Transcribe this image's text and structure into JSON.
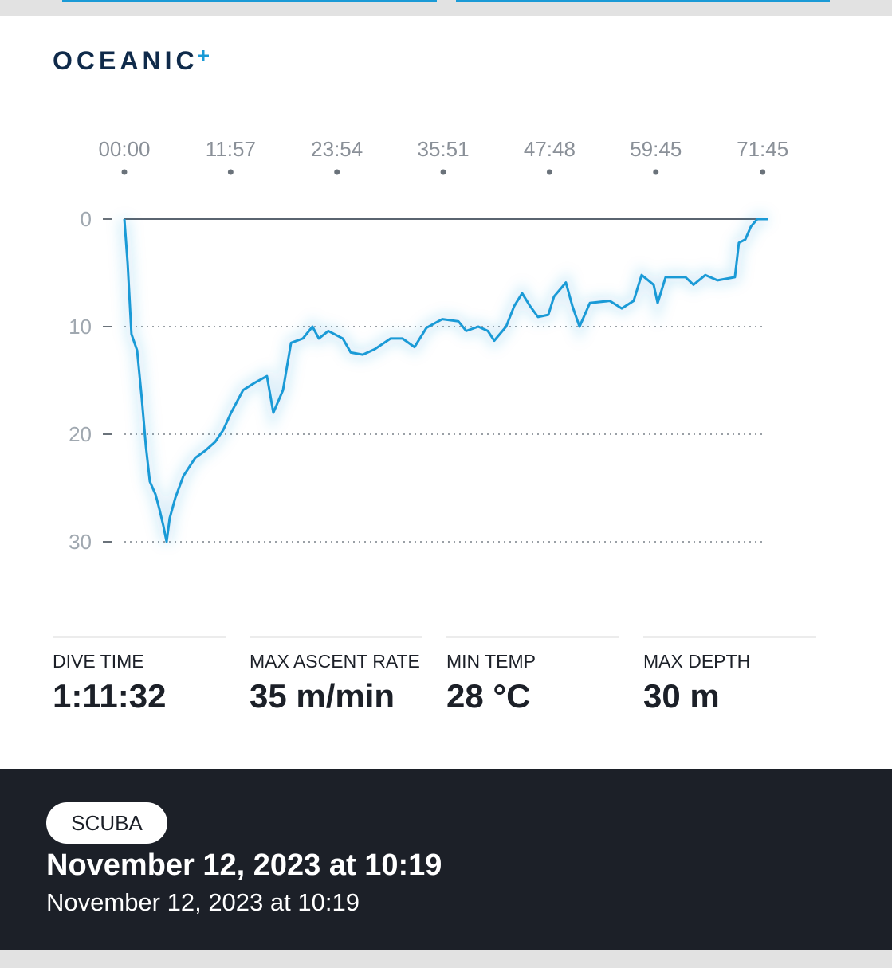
{
  "brand": "OCEANIC",
  "chart_data": {
    "type": "line",
    "y_inverted": true,
    "grid": true,
    "color": "#1a9ad6",
    "x": [
      0,
      22,
      48,
      86,
      118,
      145,
      172,
      210,
      237,
      263,
      285,
      306,
      344,
      398,
      478,
      548,
      613,
      667,
      720,
      801,
      882,
      962,
      1005,
      1070,
      1124,
      1204,
      1269,
      1312,
      1376,
      1473,
      1527,
      1608,
      1688,
      1796,
      1876,
      1957,
      2038,
      2145,
      2253,
      2306,
      2387,
      2452,
      2495,
      2575,
      2629,
      2683,
      2737,
      2790,
      2860,
      2898,
      2978,
      3022,
      3070,
      3140,
      3274,
      3355,
      3435,
      3489,
      3570,
      3597,
      3651,
      3785,
      3839,
      3919,
      4000,
      4118,
      4145,
      4188,
      4226,
      4269,
      4339
    ],
    "values": [
      0,
      4.1,
      10.7,
      12.2,
      16.7,
      21.1,
      24.4,
      25.6,
      27.0,
      28.5,
      30,
      27.8,
      25.9,
      23.9,
      22.2,
      21.5,
      20.7,
      19.6,
      18.0,
      15.9,
      15.2,
      14.6,
      18.0,
      15.9,
      11.5,
      11.1,
      10.0,
      11.1,
      10.4,
      11.1,
      12.4,
      12.6,
      12.1,
      11.1,
      11.1,
      11.9,
      10.1,
      9.3,
      9.5,
      10.4,
      10.0,
      10.4,
      11.3,
      10.0,
      8.1,
      6.9,
      8.1,
      9.1,
      8.9,
      7.2,
      5.9,
      8.1,
      10.0,
      7.8,
      7.6,
      8.3,
      7.6,
      5.2,
      6.1,
      7.8,
      5.4,
      5.4,
      6.1,
      5.2,
      5.7,
      5.4,
      2.2,
      1.9,
      0.7,
      0,
      0
    ],
    "xlim": [
      0,
      4339
    ],
    "xticks": [
      {
        "value": 0,
        "label": "00:00"
      },
      {
        "value": 717,
        "label": "11:57"
      },
      {
        "value": 1434,
        "label": "23:54"
      },
      {
        "value": 2151,
        "label": "35:51"
      },
      {
        "value": 2868,
        "label": "47:48"
      },
      {
        "value": 3585,
        "label": "59:45"
      },
      {
        "value": 4305,
        "label": "71:45"
      }
    ],
    "ylim": [
      0,
      30
    ],
    "yticks": [
      0,
      10,
      20,
      30
    ]
  },
  "stats": [
    {
      "label": "DIVE TIME",
      "value": "1:11:32"
    },
    {
      "label": "MAX ASCENT RATE",
      "value": "35 m/min"
    },
    {
      "label": "MIN TEMP",
      "value": "28 °C"
    },
    {
      "label": "MAX DEPTH",
      "value": "30 m"
    }
  ],
  "footer": {
    "badge": "SCUBA",
    "title": "November 12, 2023 at 10:19",
    "subtitle": "November 12, 2023 at 10:19"
  }
}
